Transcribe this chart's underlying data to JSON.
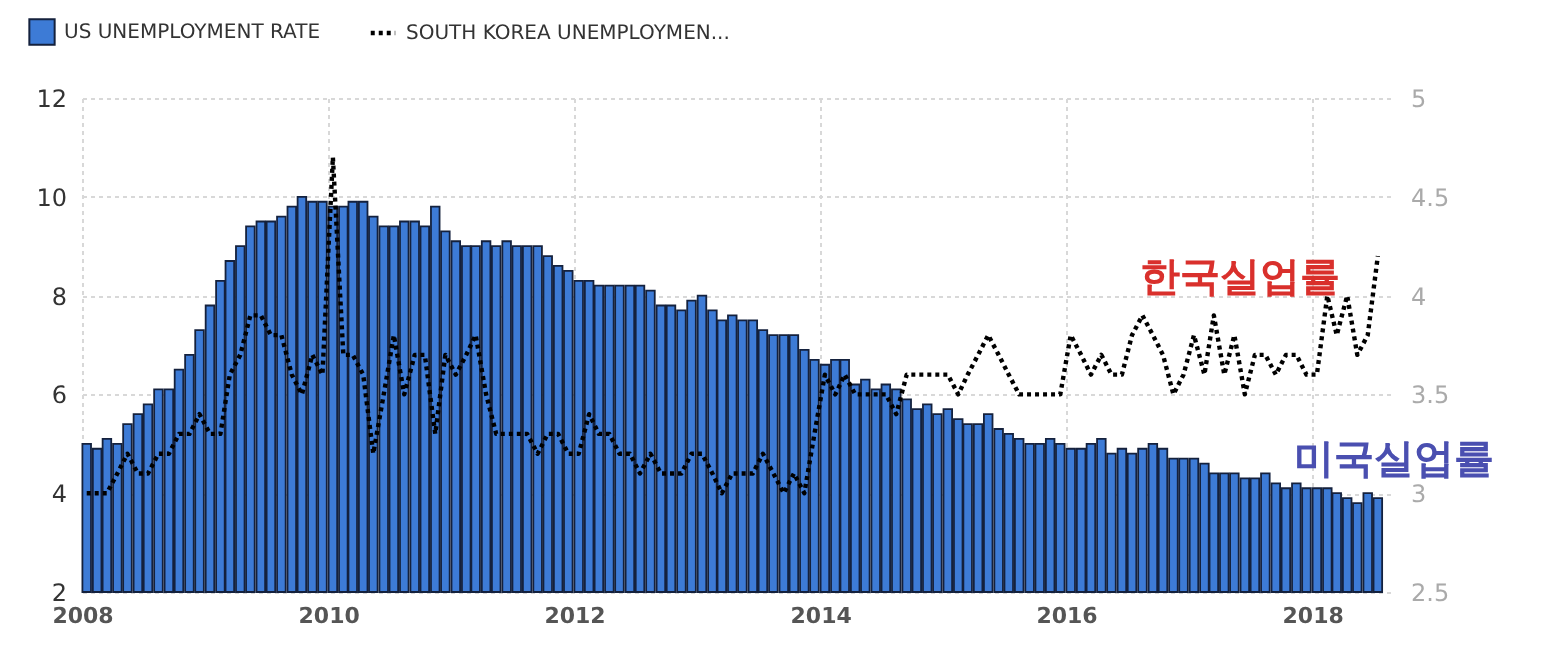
{
  "chart_data": {
    "type": "bar",
    "x": [
      "2008-01-15",
      "2008-02-15",
      "2008-03-15",
      "2008-04-15",
      "2008-05-15",
      "2008-06-15",
      "2008-07-15",
      "2008-08-15",
      "2008-09-15",
      "2008-10-15",
      "2008-11-15",
      "2008-12-15",
      "2009-01-15",
      "2009-02-15",
      "2009-03-15",
      "2009-04-15",
      "2009-05-15",
      "2009-06-15",
      "2009-07-15",
      "2009-08-15",
      "2009-09-15",
      "2009-10-15",
      "2009-11-15",
      "2009-12-15",
      "2010-01-15",
      "2010-02-15",
      "2010-03-15",
      "2010-04-15",
      "2010-05-15",
      "2010-06-15",
      "2010-07-15",
      "2010-08-15",
      "2010-09-15",
      "2010-10-15",
      "2010-11-15",
      "2010-12-15",
      "2011-01-15",
      "2011-02-15",
      "2011-03-15",
      "2011-04-15",
      "2011-05-15",
      "2011-06-15",
      "2011-07-15",
      "2011-08-15",
      "2011-09-15",
      "2011-10-15",
      "2011-11-15",
      "2011-12-15",
      "2012-01-15",
      "2012-02-15",
      "2012-03-15",
      "2012-04-15",
      "2012-05-15",
      "2012-06-15",
      "2012-07-15",
      "2012-08-15",
      "2012-09-15",
      "2012-10-15",
      "2012-11-15",
      "2012-12-15",
      "2013-01-15",
      "2013-02-15",
      "2013-03-15",
      "2013-04-15",
      "2013-05-15",
      "2013-06-15",
      "2013-07-15",
      "2013-08-15",
      "2013-09-15",
      "2013-10-15",
      "2013-11-15",
      "2013-12-15",
      "2014-01-15",
      "2014-02-15",
      "2014-03-15",
      "2014-04-15",
      "2014-05-15",
      "2014-06-15",
      "2014-07-15",
      "2014-08-15",
      "2014-09-15",
      "2014-10-15",
      "2014-11-15",
      "2014-12-15",
      "2015-01-15",
      "2015-02-15",
      "2015-03-15",
      "2015-04-15",
      "2015-05-15",
      "2015-06-15",
      "2015-07-15",
      "2015-08-15",
      "2015-09-15",
      "2015-10-15",
      "2015-11-15",
      "2015-12-15",
      "2016-01-15",
      "2016-02-15",
      "2016-03-15",
      "2016-04-15",
      "2016-05-15",
      "2016-06-15",
      "2016-07-15",
      "2016-08-15",
      "2016-09-15",
      "2016-10-15",
      "2016-11-15",
      "2016-12-15",
      "2017-01-15",
      "2017-02-15",
      "2017-03-15",
      "2017-04-15",
      "2017-05-15",
      "2017-06-15",
      "2017-07-15",
      "2017-08-15",
      "2017-09-15",
      "2017-10-15",
      "2017-11-15",
      "2017-12-15",
      "2018-01-15",
      "2018-02-15",
      "2018-03-15",
      "2018-04-15",
      "2018-05-15",
      "2018-06-15",
      "2018-07-15"
    ],
    "series": [
      {
        "name": "US UNEMPLOYMENT RATE",
        "color": "#3d7bd6",
        "values": [
          5.0,
          4.9,
          5.1,
          5.0,
          5.4,
          5.6,
          5.8,
          6.1,
          6.1,
          6.5,
          6.8,
          7.3,
          7.8,
          8.3,
          8.7,
          9.0,
          9.4,
          9.5,
          9.5,
          9.6,
          9.8,
          10.0,
          9.9,
          9.9,
          9.8,
          9.8,
          9.9,
          9.9,
          9.6,
          9.4,
          9.4,
          9.5,
          9.5,
          9.4,
          9.8,
          9.3,
          9.1,
          9.0,
          9.0,
          9.1,
          9.0,
          9.1,
          9.0,
          9.0,
          9.0,
          8.8,
          8.6,
          8.5,
          8.3,
          8.3,
          8.2,
          8.2,
          8.2,
          8.2,
          8.2,
          8.1,
          7.8,
          7.8,
          7.7,
          7.9,
          8.0,
          7.7,
          7.5,
          7.6,
          7.5,
          7.5,
          7.3,
          7.2,
          7.2,
          7.2,
          6.9,
          6.7,
          6.6,
          6.7,
          6.7,
          6.2,
          6.3,
          6.1,
          6.2,
          6.1,
          5.9,
          5.7,
          5.8,
          5.6,
          5.7,
          5.5,
          5.4,
          5.4,
          5.6,
          5.3,
          5.2,
          5.1,
          5.0,
          5.0,
          5.1,
          5.0,
          4.9,
          4.9,
          5.0,
          5.1,
          4.8,
          4.9,
          4.8,
          4.9,
          5.0,
          4.9,
          4.7,
          4.7,
          4.7,
          4.6,
          4.4,
          4.4,
          4.4,
          4.3,
          4.3,
          4.4,
          4.2,
          4.1,
          4.2,
          4.1,
          4.1,
          4.1,
          4.0,
          3.9,
          3.8,
          4.0,
          3.9
        ]
      },
      {
        "name": "SOUTH KOREA UNEMPLOYMEN...",
        "type": "line",
        "axis": "y2",
        "line_style": "dotted",
        "color": "#000000",
        "values": [
          3.0,
          3.0,
          3.0,
          3.1,
          3.2,
          3.1,
          3.1,
          3.2,
          3.2,
          3.3,
          3.3,
          3.4,
          3.3,
          3.3,
          3.6,
          3.7,
          3.9,
          3.9,
          3.8,
          3.8,
          3.6,
          3.5,
          3.7,
          3.6,
          4.7,
          3.7,
          3.7,
          3.6,
          3.2,
          3.5,
          3.8,
          3.5,
          3.7,
          3.7,
          3.3,
          3.7,
          3.6,
          3.7,
          3.8,
          3.5,
          3.3,
          3.3,
          3.3,
          3.3,
          3.2,
          3.3,
          3.3,
          3.2,
          3.2,
          3.4,
          3.3,
          3.3,
          3.2,
          3.2,
          3.1,
          3.2,
          3.1,
          3.1,
          3.1,
          3.2,
          3.2,
          3.1,
          3.0,
          3.1,
          3.1,
          3.1,
          3.2,
          3.1,
          3.0,
          3.1,
          3.0,
          3.3,
          3.6,
          3.5,
          3.6,
          3.5,
          3.5,
          3.5,
          3.5,
          3.4,
          3.6,
          3.6,
          3.6,
          3.6,
          3.6,
          3.5,
          3.6,
          3.7,
          3.8,
          3.7,
          3.6,
          3.5,
          3.5,
          3.5,
          3.5,
          3.5,
          3.8,
          3.7,
          3.6,
          3.7,
          3.6,
          3.6,
          3.8,
          3.9,
          3.8,
          3.7,
          3.5,
          3.6,
          3.8,
          3.6,
          3.9,
          3.6,
          3.8,
          3.5,
          3.7,
          3.7,
          3.6,
          3.7,
          3.7,
          3.6,
          3.6,
          4.0,
          3.8,
          4.0,
          3.7,
          3.8,
          4.2
        ]
      }
    ],
    "xlim": [
      "2008-01",
      "2018-09"
    ],
    "xticks": [
      "2008",
      "2010",
      "2012",
      "2014",
      "2016",
      "2018"
    ],
    "ylim": [
      2,
      12
    ],
    "yticks": [
      2,
      4,
      6,
      8,
      10,
      12
    ],
    "y2lim": [
      2.5,
      5
    ],
    "y2ticks": [
      2.5,
      3,
      3.5,
      4,
      4.5,
      5
    ],
    "grid": true,
    "legend": "top left",
    "annotations": [
      "한국실업률",
      "미국실업률"
    ]
  }
}
